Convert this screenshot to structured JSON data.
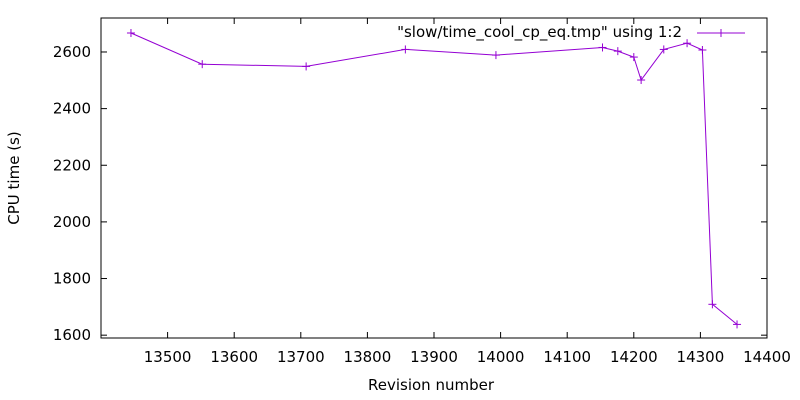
{
  "chart_data": {
    "type": "line",
    "title": "",
    "xlabel": "Revision number",
    "ylabel": "CPU time (s)",
    "xlim": [
      13400,
      14400
    ],
    "ylim": [
      1590,
      2720
    ],
    "xticks": [
      13500,
      13600,
      13700,
      13800,
      13900,
      14000,
      14100,
      14200,
      14300,
      14400
    ],
    "yticks": [
      1600,
      1800,
      2000,
      2200,
      2400,
      2600
    ],
    "grid": false,
    "legend_position": "top-right",
    "series": [
      {
        "name": "\"slow/time_cool_cp_eq.tmp\" using 1:2",
        "color": "#9400d3",
        "marker": "plus",
        "x": [
          13445,
          13552,
          13708,
          13857,
          13993,
          14153,
          14176,
          14200,
          14211,
          14245,
          14280,
          14303,
          14318,
          14355
        ],
        "y": [
          2667,
          2557,
          2549,
          2609,
          2589,
          2616,
          2603,
          2582,
          2501,
          2609,
          2631,
          2607,
          1709,
          1638
        ]
      }
    ]
  }
}
